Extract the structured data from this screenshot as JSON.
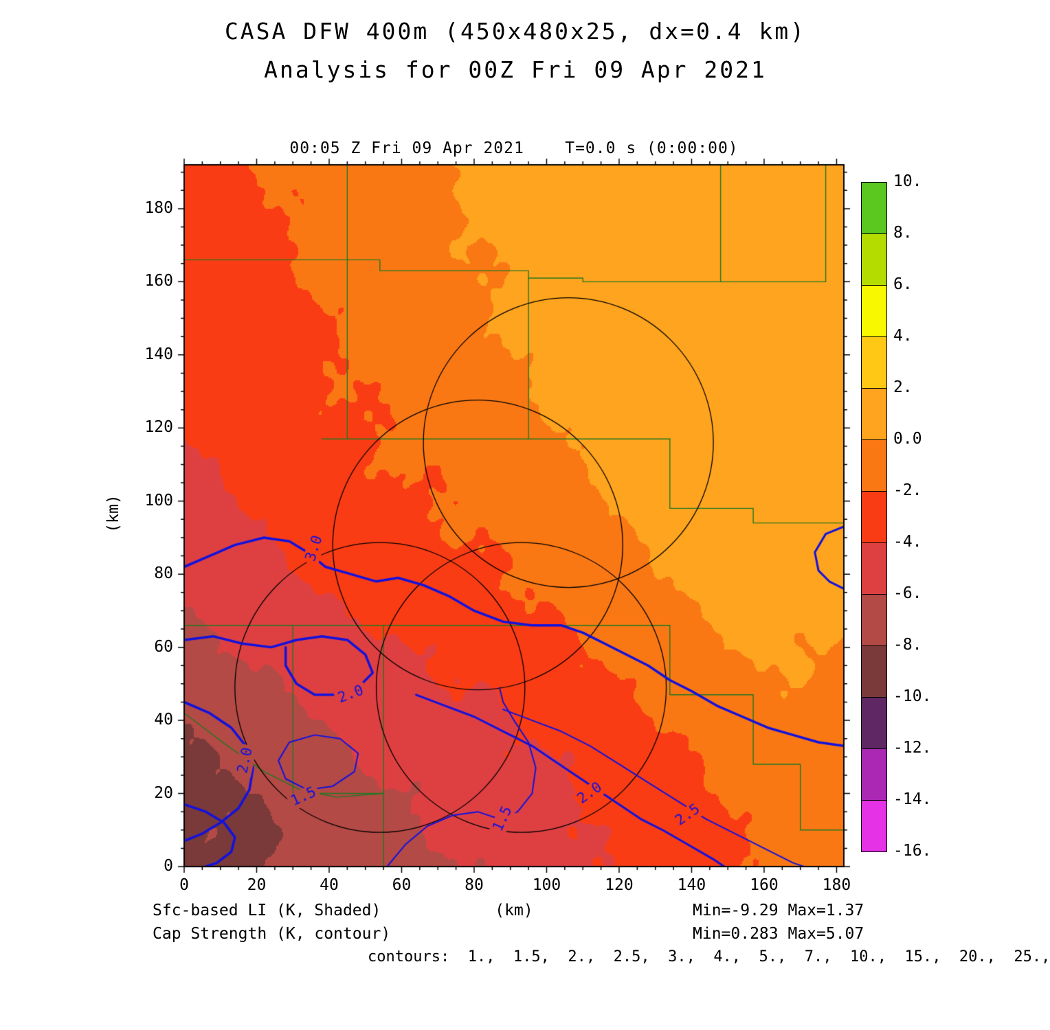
{
  "title": {
    "line1": "CASA DFW 400m (450x480x25, dx=0.4 km)",
    "line2": "Analysis for 00Z Fri 09 Apr 2021"
  },
  "subheader": "00:05 Z Fri 09 Apr 2021    T=0.0 s (0:00:00)",
  "axes": {
    "x_ticks": [
      0,
      20,
      40,
      60,
      80,
      100,
      120,
      140,
      160,
      180
    ],
    "y_ticks": [
      0,
      20,
      40,
      60,
      80,
      100,
      120,
      140,
      160,
      180
    ],
    "x_label": "(km)",
    "y_label": "(km)"
  },
  "colorbar": {
    "labels": [
      "10.",
      "8.",
      "6.",
      "4.",
      "2.",
      "0.0",
      "-2.",
      "-4.",
      "-6.",
      "-8.",
      "-10.",
      "-12.",
      "-14.",
      "-16."
    ]
  },
  "footer": {
    "shaded_label": "Sfc-based LI (K, Shaded)",
    "contour_label": "Cap Strength (K, contour)",
    "x_unit": "(km)",
    "shaded_minmax": "Min=-9.29 Max=1.37",
    "contour_minmax": "Min=0.283 Max=5.07",
    "contour_levels_text": "contours:  1.,  1.5,  2.,  2.5,  3.,  4.,  5.,  7.,  10.,  15.,  20.,  25.,"
  },
  "chart_data": {
    "type": "heatmap",
    "title": "CASA DFW 400m (450x480x25, dx=0.4 km) Analysis for 00Z Fri 09 Apr 2021",
    "subtitle": "00:05 Z Fri 09 Apr 2021  T=0.0 s (0:00:00)",
    "xlabel": "(km)",
    "ylabel": "(km)",
    "xlim": [
      0,
      182
    ],
    "ylim": [
      0,
      192
    ],
    "grid": false,
    "legend_position": "right-colorbar",
    "levels": [
      -16,
      -14,
      -12,
      -10,
      -8,
      -6,
      -4,
      -2,
      0,
      2,
      4,
      6,
      8,
      10
    ],
    "colors": [
      "#E632E6",
      "#AA28B4",
      "#5F2864",
      "#7A3A3A",
      "#B44A46",
      "#DE4042",
      "#FA3C14",
      "#FA7814",
      "#FFA41E",
      "#FFC814",
      "#F8F800",
      "#B4DC00",
      "#5AC81E"
    ],
    "shaded_field": {
      "name": "Sfc-based LI (K)",
      "min": -9.29,
      "max": 1.37,
      "x": [
        0,
        20.2,
        40.4,
        60.7,
        80.9,
        101.1,
        121.3,
        141.6,
        161.8,
        182
      ],
      "y": [
        192,
        172.8,
        153.6,
        134.4,
        115.2,
        96,
        76.8,
        57.6,
        38.4,
        19.2,
        0
      ],
      "values": [
        [
          -3.0,
          -2.2,
          -1.2,
          -0.5,
          0.6,
          1.0,
          1.1,
          1.2,
          1.2,
          1.3
        ],
        [
          -3.2,
          -2.4,
          -1.5,
          -0.9,
          0.2,
          0.9,
          1.0,
          1.1,
          1.2,
          1.2
        ],
        [
          -3.4,
          -2.6,
          -1.8,
          -1.1,
          -0.3,
          0.7,
          1.0,
          1.0,
          1.1,
          1.2
        ],
        [
          -3.7,
          -2.9,
          -2.1,
          -1.4,
          -0.7,
          0.3,
          0.9,
          1.0,
          1.0,
          1.1
        ],
        [
          -3.9,
          -3.3,
          -2.5,
          -1.8,
          -1.1,
          -0.3,
          0.6,
          0.9,
          1.0,
          1.0
        ],
        [
          -4.8,
          -3.8,
          -3.0,
          -2.4,
          -1.6,
          -0.8,
          0.2,
          0.8,
          0.9,
          1.0
        ],
        [
          -5.3,
          -4.5,
          -3.7,
          -3.1,
          -2.5,
          -1.5,
          -0.5,
          0.4,
          0.8,
          0.9
        ],
        [
          -6.5,
          -5.7,
          -4.9,
          -4.3,
          -3.5,
          -2.5,
          -1.5,
          -0.5,
          0.3,
          -0.3
        ],
        [
          -7.9,
          -6.9,
          -5.9,
          -5.1,
          -4.5,
          -3.5,
          -2.5,
          -1.5,
          -0.8,
          -0.5
        ],
        [
          -8.3,
          -8.1,
          -6.7,
          -6.1,
          -5.4,
          -4.5,
          -3.3,
          -2.3,
          -1.3,
          -0.9
        ],
        [
          -8.7,
          -8.1,
          -7.3,
          -6.6,
          -5.9,
          -4.9,
          -3.7,
          -2.7,
          -1.6,
          -1.1
        ]
      ]
    },
    "cap_contours": {
      "name": "Cap Strength (K)",
      "min": 0.283,
      "max": 5.07,
      "levels_listed": [
        1,
        1.5,
        2,
        2.5,
        3,
        4,
        5,
        7,
        10,
        15,
        20,
        25
      ],
      "lines": [
        {
          "label": "3.0",
          "label_at": [
            36,
            87
          ],
          "rot": -72,
          "w": 3.5,
          "pts": [
            [
              0,
              82
            ],
            [
              7,
              85
            ],
            [
              14,
              88
            ],
            [
              22,
              90
            ],
            [
              29,
              89
            ],
            [
              34,
              86
            ],
            [
              39,
              82
            ],
            [
              46,
              80
            ],
            [
              53,
              78
            ],
            [
              59,
              79
            ],
            [
              66,
              77
            ],
            [
              73,
              74
            ],
            [
              80,
              70
            ],
            [
              88,
              67
            ],
            [
              96,
              66
            ],
            [
              104,
              66
            ],
            [
              110,
              64
            ],
            [
              116,
              61
            ],
            [
              122,
              58
            ],
            [
              128,
              55
            ],
            [
              134,
              51
            ],
            [
              140,
              48
            ],
            [
              147,
              44
            ],
            [
              154,
              41
            ],
            [
              161,
              38
            ],
            [
              168,
              36
            ],
            [
              175,
              34
            ],
            [
              182,
              33
            ]
          ]
        },
        {
          "label": "2.0",
          "label_at": [
            46,
            47
          ],
          "rot": -20,
          "w": 3.5,
          "pts": [
            [
              0,
              62
            ],
            [
              8,
              63
            ],
            [
              16,
              61
            ],
            [
              24,
              60
            ],
            [
              31,
              62
            ],
            [
              38,
              63
            ],
            [
              45,
              62
            ],
            [
              50,
              58
            ],
            [
              52,
              53
            ],
            [
              48,
              49
            ],
            [
              42,
              47
            ],
            [
              36,
              47
            ],
            [
              31,
              50
            ],
            [
              28,
              55
            ],
            [
              28,
              60
            ]
          ]
        },
        {
          "label": "1.5",
          "label_at": [
            33,
            19
          ],
          "rot": -25,
          "w": 2,
          "pts": [
            [
              29,
              34
            ],
            [
              36,
              36
            ],
            [
              43,
              35
            ],
            [
              48,
              31
            ],
            [
              47,
              26
            ],
            [
              41,
              22
            ],
            [
              34,
              21
            ],
            [
              28,
              24
            ],
            [
              26,
              29
            ],
            [
              29,
              34
            ]
          ]
        },
        {
          "label": "2.0",
          "label_at": [
            17,
            29
          ],
          "rot": -78,
          "w": 3.5,
          "pts": [
            [
              0,
              45
            ],
            [
              7,
              42
            ],
            [
              13,
              38
            ],
            [
              17,
              33
            ],
            [
              19,
              27
            ],
            [
              18,
              21
            ],
            [
              15,
              16
            ],
            [
              10,
              12
            ],
            [
              5,
              9
            ],
            [
              0,
              7
            ]
          ]
        },
        {
          "label": "",
          "w": 3.5,
          "pts": [
            [
              0,
              17
            ],
            [
              6,
              15
            ],
            [
              11,
              12
            ],
            [
              14,
              8
            ],
            [
              13,
              4
            ],
            [
              9,
              1
            ],
            [
              6,
              0
            ]
          ]
        },
        {
          "label": "2.0",
          "label_at": [
            112,
            20
          ],
          "rot": -35,
          "w": 3,
          "pts": [
            [
              64,
              47
            ],
            [
              72,
              44
            ],
            [
              80,
              41
            ],
            [
              88,
              37
            ],
            [
              96,
              33
            ],
            [
              102,
              29
            ],
            [
              108,
              25
            ],
            [
              114,
              21
            ],
            [
              120,
              17
            ],
            [
              126,
              13
            ],
            [
              132,
              10
            ],
            [
              139,
              6
            ],
            [
              146,
              2
            ],
            [
              149,
              0
            ]
          ]
        },
        {
          "label": "2.5",
          "label_at": [
            139,
            14
          ],
          "rot": -35,
          "w": 2,
          "pts": [
            [
              88,
              43
            ],
            [
              96,
              40
            ],
            [
              104,
              37
            ],
            [
              112,
              33
            ],
            [
              120,
              28
            ],
            [
              128,
              23
            ],
            [
              136,
              18
            ],
            [
              144,
              13
            ],
            [
              152,
              9
            ],
            [
              160,
              5
            ],
            [
              168,
              1
            ],
            [
              171,
              0
            ]
          ]
        },
        {
          "label": "1.5",
          "label_at": [
            88,
            13
          ],
          "rot": -65,
          "w": 2,
          "pts": [
            [
              56,
              0
            ],
            [
              61,
              6
            ],
            [
              67,
              11
            ],
            [
              74,
              14
            ],
            [
              81,
              15
            ],
            [
              87,
              13
            ],
            [
              92,
              15
            ],
            [
              96,
              20
            ],
            [
              97,
              27
            ],
            [
              95,
              34
            ],
            [
              91,
              40
            ],
            [
              88,
              45
            ],
            [
              87,
              49
            ]
          ]
        },
        {
          "label": "",
          "w": 3,
          "pts": [
            [
              182,
              93
            ],
            [
              177,
              91
            ],
            [
              174,
              86
            ],
            [
              175,
              81
            ],
            [
              178,
              78
            ],
            [
              182,
              76
            ]
          ]
        }
      ]
    },
    "county_lines": [
      [
        [
          0,
          166
        ],
        [
          54,
          166
        ],
        [
          54,
          163
        ],
        [
          95,
          163
        ],
        [
          95,
          161
        ],
        [
          110,
          161
        ],
        [
          110,
          160
        ],
        [
          148,
          160
        ]
      ],
      [
        [
          148,
          192
        ],
        [
          148,
          160
        ]
      ],
      [
        [
          148,
          160
        ],
        [
          177,
          160
        ],
        [
          177,
          192
        ]
      ],
      [
        [
          45,
          192
        ],
        [
          45,
          117
        ]
      ],
      [
        [
          38,
          117
        ],
        [
          134,
          117
        ]
      ],
      [
        [
          95,
          161
        ],
        [
          95,
          117
        ]
      ],
      [
        [
          134,
          117
        ],
        [
          134,
          98
        ],
        [
          157,
          98
        ],
        [
          157,
          94
        ],
        [
          182,
          94
        ]
      ],
      [
        [
          0,
          66
        ],
        [
          134,
          66
        ]
      ],
      [
        [
          30,
          66
        ],
        [
          30,
          20
        ],
        [
          55,
          20
        ],
        [
          55,
          66
        ]
      ],
      [
        [
          0,
          42
        ],
        [
          12,
          33
        ],
        [
          22,
          26
        ],
        [
          32,
          21
        ],
        [
          42,
          19
        ],
        [
          55,
          20
        ]
      ],
      [
        [
          134,
          66
        ],
        [
          134,
          47
        ],
        [
          157,
          47
        ],
        [
          157,
          28
        ],
        [
          170,
          28
        ],
        [
          170,
          10
        ],
        [
          182,
          10
        ]
      ],
      [
        [
          55,
          20
        ],
        [
          55,
          0
        ]
      ]
    ],
    "range_circles": [
      {
        "cx": 106,
        "cy": 116,
        "r": 40
      },
      {
        "cx": 81,
        "cy": 88,
        "r": 40
      },
      {
        "cx": 54,
        "cy": 49,
        "r": 40
      },
      {
        "cx": 93,
        "cy": 49,
        "r": 40
      }
    ],
    "line_colors": {
      "contour": "#1212DD",
      "county": "#207820",
      "circle": "#000000"
    }
  }
}
